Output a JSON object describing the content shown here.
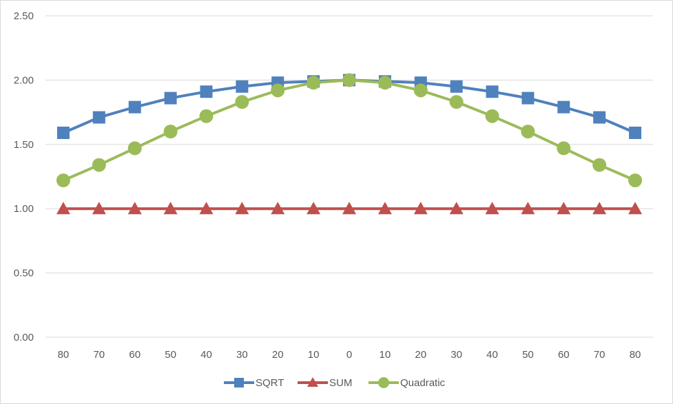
{
  "chart_data": {
    "type": "line",
    "title": "",
    "xlabel": "",
    "ylabel": "",
    "categories": [
      "80",
      "70",
      "60",
      "50",
      "40",
      "30",
      "20",
      "10",
      "0",
      "10",
      "20",
      "30",
      "40",
      "50",
      "60",
      "70",
      "80"
    ],
    "ylim": [
      0,
      2.5
    ],
    "yticks": [
      "0.00",
      "0.50",
      "1.00",
      "1.50",
      "2.00",
      "2.50"
    ],
    "grid": true,
    "legend_position": "bottom",
    "series": [
      {
        "name": "SQRT",
        "color": "#4f81bd",
        "marker": "square",
        "values": [
          1.59,
          1.71,
          1.79,
          1.86,
          1.91,
          1.95,
          1.98,
          1.99,
          2.0,
          1.99,
          1.98,
          1.95,
          1.91,
          1.86,
          1.79,
          1.71,
          1.59
        ]
      },
      {
        "name": "SUM",
        "color": "#c0504d",
        "marker": "triangle",
        "values": [
          1.0,
          1.0,
          1.0,
          1.0,
          1.0,
          1.0,
          1.0,
          1.0,
          1.0,
          1.0,
          1.0,
          1.0,
          1.0,
          1.0,
          1.0,
          1.0,
          1.0
        ]
      },
      {
        "name": "Quadratic",
        "color": "#9bbb59",
        "marker": "circle",
        "values": [
          1.22,
          1.34,
          1.47,
          1.6,
          1.72,
          1.83,
          1.92,
          1.98,
          2.0,
          1.98,
          1.92,
          1.83,
          1.72,
          1.6,
          1.47,
          1.34,
          1.22
        ]
      }
    ]
  }
}
